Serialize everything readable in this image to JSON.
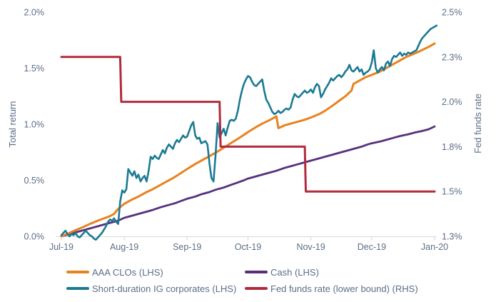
{
  "chart": {
    "left_axis": {
      "title": "Total return",
      "ticks": [
        {
          "label": "0.0%",
          "value": 0.0
        },
        {
          "label": "0.5%",
          "value": 0.5
        },
        {
          "label": "1.0%",
          "value": 1.0
        },
        {
          "label": "1.5%",
          "value": 1.5
        },
        {
          "label": "2.0%",
          "value": 2.0
        }
      ]
    },
    "right_axis": {
      "title": "Fed funds rate",
      "ticks": [
        {
          "label": "1.3%",
          "value": 1.25
        },
        {
          "label": "1.5%",
          "value": 1.5
        },
        {
          "label": "1.8%",
          "value": 1.75
        },
        {
          "label": "2.0%",
          "value": 2.0
        },
        {
          "label": "2.3%",
          "value": 2.25
        },
        {
          "label": "2.5%",
          "value": 2.5
        }
      ]
    },
    "x_axis": {
      "ticks": [
        {
          "label": "Jul-19",
          "day": 0
        },
        {
          "label": "Aug-19",
          "day": 31
        },
        {
          "label": "Sep-19",
          "day": 62
        },
        {
          "label": "Oct-19",
          "day": 92
        },
        {
          "label": "Nov-19",
          "day": 123
        },
        {
          "label": "Dec-19",
          "day": 153
        },
        {
          "label": "Jan-20",
          "day": 184
        }
      ]
    },
    "legend": {
      "items": [
        {
          "label": "AAA CLOs (LHS)",
          "series": 0
        },
        {
          "label": "Cash (LHS)",
          "series": 1
        },
        {
          "label": "Short-duration IG corporates (LHS)",
          "series": 2
        },
        {
          "label": "Fed funds rate (lower bound) (RHS)",
          "series": 3
        }
      ]
    },
    "colors": {
      "text": "#5C6E86",
      "axis_line": "#D9D9D9",
      "tick_mark": "#CDD2D8"
    }
  },
  "chart_data": {
    "type": "line",
    "x_unit": "days since Jul-19 start",
    "x_range": [
      0,
      184
    ],
    "left_ylim": [
      0.0,
      2.0
    ],
    "right_ylim": [
      1.25,
      2.5
    ],
    "grid": false,
    "legend_position": "bottom",
    "series": [
      {
        "name": "AAA CLOs (LHS)",
        "axis": "left",
        "color": "#E8821E",
        "width": 3,
        "z": 2,
        "points": [
          [
            0,
            0
          ],
          [
            4,
            0.03
          ],
          [
            7,
            0.055
          ],
          [
            11,
            0.085
          ],
          [
            14,
            0.11
          ],
          [
            18,
            0.14
          ],
          [
            21,
            0.16
          ],
          [
            24,
            0.18
          ],
          [
            26,
            0.2
          ],
          [
            28,
            0.245
          ],
          [
            31,
            0.29
          ],
          [
            35,
            0.33
          ],
          [
            38,
            0.355
          ],
          [
            42,
            0.395
          ],
          [
            45,
            0.42
          ],
          [
            49,
            0.46
          ],
          [
            52,
            0.49
          ],
          [
            56,
            0.53
          ],
          [
            59,
            0.565
          ],
          [
            62,
            0.6
          ],
          [
            66,
            0.645
          ],
          [
            69,
            0.675
          ],
          [
            73,
            0.715
          ],
          [
            76,
            0.745
          ],
          [
            80,
            0.79
          ],
          [
            83,
            0.825
          ],
          [
            87,
            0.87
          ],
          [
            90,
            0.905
          ],
          [
            92,
            0.93
          ],
          [
            96,
            0.975
          ],
          [
            99,
            1.005
          ],
          [
            103,
            1.04
          ],
          [
            106,
            1.07
          ],
          [
            107,
            0.965
          ],
          [
            110,
            0.99
          ],
          [
            113,
            1.005
          ],
          [
            117,
            1.025
          ],
          [
            120,
            1.04
          ],
          [
            123,
            1.06
          ],
          [
            127,
            1.09
          ],
          [
            130,
            1.12
          ],
          [
            134,
            1.17
          ],
          [
            137,
            1.21
          ],
          [
            140,
            1.25
          ],
          [
            143,
            1.3
          ],
          [
            144,
            1.36
          ],
          [
            147,
            1.39
          ],
          [
            150,
            1.42
          ],
          [
            153,
            1.44
          ],
          [
            157,
            1.47
          ],
          [
            160,
            1.5
          ],
          [
            164,
            1.54
          ],
          [
            167,
            1.57
          ],
          [
            170,
            1.6
          ],
          [
            174,
            1.63
          ],
          [
            177,
            1.655
          ],
          [
            181,
            1.69
          ],
          [
            184,
            1.72
          ]
        ]
      },
      {
        "name": "Cash (LHS)",
        "axis": "left",
        "color": "#56307E",
        "width": 2.8,
        "z": 0,
        "points": [
          [
            0,
            0
          ],
          [
            4,
            0.02
          ],
          [
            7,
            0.035
          ],
          [
            11,
            0.055
          ],
          [
            14,
            0.07
          ],
          [
            18,
            0.09
          ],
          [
            21,
            0.105
          ],
          [
            25,
            0.125
          ],
          [
            28,
            0.14
          ],
          [
            31,
            0.165
          ],
          [
            35,
            0.185
          ],
          [
            38,
            0.2
          ],
          [
            42,
            0.22
          ],
          [
            45,
            0.235
          ],
          [
            49,
            0.26
          ],
          [
            52,
            0.275
          ],
          [
            56,
            0.295
          ],
          [
            59,
            0.315
          ],
          [
            62,
            0.335
          ],
          [
            66,
            0.355
          ],
          [
            69,
            0.375
          ],
          [
            73,
            0.395
          ],
          [
            76,
            0.415
          ],
          [
            80,
            0.435
          ],
          [
            83,
            0.455
          ],
          [
            87,
            0.48
          ],
          [
            90,
            0.5
          ],
          [
            92,
            0.515
          ],
          [
            96,
            0.535
          ],
          [
            99,
            0.55
          ],
          [
            103,
            0.57
          ],
          [
            106,
            0.585
          ],
          [
            110,
            0.61
          ],
          [
            113,
            0.625
          ],
          [
            117,
            0.645
          ],
          [
            120,
            0.66
          ],
          [
            123,
            0.675
          ],
          [
            127,
            0.695
          ],
          [
            130,
            0.71
          ],
          [
            134,
            0.73
          ],
          [
            137,
            0.745
          ],
          [
            141,
            0.765
          ],
          [
            144,
            0.78
          ],
          [
            148,
            0.8
          ],
          [
            151,
            0.82
          ],
          [
            153,
            0.83
          ],
          [
            157,
            0.845
          ],
          [
            160,
            0.86
          ],
          [
            164,
            0.88
          ],
          [
            167,
            0.895
          ],
          [
            171,
            0.91
          ],
          [
            174,
            0.925
          ],
          [
            178,
            0.94
          ],
          [
            181,
            0.955
          ],
          [
            184,
            0.98
          ]
        ]
      },
      {
        "name": "Short-duration IG corporates (LHS)",
        "axis": "left",
        "color": "#1B7A93",
        "width": 2.6,
        "z": 3,
        "x_start": 0,
        "x_step": 1,
        "values": [
          0.01,
          0.03,
          0.05,
          0.02,
          0.0,
          0.02,
          0.01,
          0.03,
          0.0,
          -0.01,
          0.01,
          0.03,
          0.05,
          0.03,
          0.01,
          0.0,
          -0.02,
          -0.03,
          -0.01,
          0.01,
          0.03,
          0.06,
          0.09,
          0.13,
          0.15,
          0.14,
          0.16,
          0.13,
          0.11,
          0.31,
          0.41,
          0.39,
          0.42,
          0.6,
          0.57,
          0.54,
          0.58,
          0.52,
          0.55,
          0.49,
          0.52,
          0.54,
          0.49,
          0.58,
          0.71,
          0.69,
          0.72,
          0.7,
          0.69,
          0.73,
          0.77,
          0.74,
          0.79,
          0.82,
          0.8,
          0.78,
          0.83,
          0.86,
          0.84,
          0.87,
          0.9,
          0.88,
          0.89,
          0.94,
          0.99,
          1.02,
          0.9,
          0.87,
          0.88,
          0.83,
          0.84,
          0.85,
          0.82,
          0.65,
          0.52,
          0.49,
          0.72,
          1.01,
          0.88,
          0.92,
          0.96,
          0.9,
          0.97,
          1.03,
          1.04,
          1.03,
          1.05,
          1.12,
          1.22,
          1.3,
          1.36,
          1.4,
          1.43,
          1.42,
          1.38,
          1.35,
          1.34,
          1.36,
          1.38,
          1.4,
          1.3,
          1.22,
          1.19,
          1.15,
          1.11,
          1.09,
          1.1,
          1.12,
          1.1,
          1.11,
          1.13,
          1.14,
          1.13,
          1.15,
          1.22,
          1.27,
          1.25,
          1.24,
          1.26,
          1.28,
          1.3,
          1.28,
          1.29,
          1.31,
          1.28,
          1.33,
          1.36,
          1.34,
          1.24,
          1.27,
          1.31,
          1.34,
          1.37,
          1.41,
          1.39,
          1.41,
          1.43,
          1.44,
          1.42,
          1.44,
          1.47,
          1.49,
          1.53,
          1.48,
          1.47,
          1.49,
          1.51,
          1.47,
          1.49,
          1.44,
          1.46,
          1.47,
          1.49,
          1.55,
          1.66,
          1.5,
          1.46,
          1.49,
          1.51,
          1.48,
          1.54,
          1.56,
          1.52,
          1.58,
          1.61,
          1.6,
          1.62,
          1.64,
          1.61,
          1.63,
          1.62,
          1.64,
          1.63,
          1.64,
          1.65,
          1.66,
          1.7,
          1.74,
          1.77,
          1.79,
          1.81,
          1.83,
          1.85,
          1.86,
          1.87,
          1.88
        ]
      },
      {
        "name": "Fed funds rate (lower bound) (RHS)",
        "axis": "right",
        "color": "#B02B3D",
        "width": 3,
        "z": 4,
        "points": [
          [
            0,
            2.25
          ],
          [
            29,
            2.25
          ],
          [
            29.5,
            2.0
          ],
          [
            78,
            2.0
          ],
          [
            78.5,
            1.75
          ],
          [
            120,
            1.75
          ],
          [
            120.5,
            1.5
          ],
          [
            184,
            1.5
          ]
        ]
      }
    ]
  }
}
